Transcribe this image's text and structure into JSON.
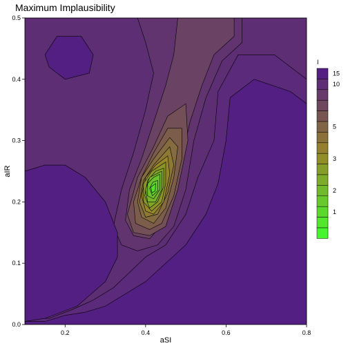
{
  "chart_data": {
    "type": "contour",
    "title": "Maximum Implausibility",
    "xlabel": "aSI",
    "ylabel": "aIR",
    "xlim": [
      0.1,
      0.8
    ],
    "ylim": [
      0.0,
      0.5
    ],
    "x_ticks": [
      "0.2",
      "0.4",
      "0.6",
      "0.8"
    ],
    "y_ticks": [
      "0.0",
      "0.1",
      "0.2",
      "0.3",
      "0.4",
      "0.5"
    ],
    "x_tick_values": [
      0.2,
      0.4,
      0.6,
      0.8
    ],
    "y_tick_values": [
      0.0,
      0.1,
      0.2,
      0.3,
      0.4,
      0.5
    ],
    "legend": {
      "title": "I",
      "placement": "right",
      "labels": [
        "15",
        "10",
        "5",
        "3",
        "2",
        "1"
      ],
      "label_levels": [
        0,
        1,
        5,
        8,
        11,
        13
      ],
      "levels": 16,
      "color_high": "#541f82",
      "color_low": "#47f52e"
    },
    "contours": [
      {
        "level": "outer",
        "points": [
          [
            0.1,
            0.5
          ],
          [
            0.8,
            0.5
          ],
          [
            0.8,
            0.4
          ],
          [
            0.72,
            0.44
          ],
          [
            0.63,
            0.44
          ],
          [
            0.58,
            0.38
          ],
          [
            0.57,
            0.3
          ],
          [
            0.53,
            0.24
          ],
          [
            0.5,
            0.18
          ],
          [
            0.45,
            0.13
          ],
          [
            0.4,
            0.11
          ],
          [
            0.32,
            0.06
          ],
          [
            0.27,
            0.04
          ],
          [
            0.22,
            0.025
          ],
          [
            0.16,
            0.01
          ],
          [
            0.1,
            0.01
          ]
        ]
      },
      {
        "level": 1,
        "points": [
          [
            0.38,
            0.5
          ],
          [
            0.64,
            0.5
          ],
          [
            0.64,
            0.46
          ],
          [
            0.59,
            0.43
          ],
          [
            0.55,
            0.37
          ],
          [
            0.52,
            0.3
          ],
          [
            0.5,
            0.22
          ],
          [
            0.47,
            0.16
          ],
          [
            0.43,
            0.13
          ],
          [
            0.38,
            0.12
          ],
          [
            0.34,
            0.13
          ],
          [
            0.32,
            0.16
          ],
          [
            0.34,
            0.22
          ],
          [
            0.37,
            0.28
          ],
          [
            0.4,
            0.35
          ],
          [
            0.42,
            0.41
          ],
          [
            0.4,
            0.46
          ]
        ]
      },
      {
        "level": 2,
        "points": [
          [
            0.48,
            0.5
          ],
          [
            0.62,
            0.5
          ],
          [
            0.62,
            0.47
          ],
          [
            0.57,
            0.44
          ],
          [
            0.54,
            0.39
          ],
          [
            0.51,
            0.33
          ],
          [
            0.48,
            0.24
          ],
          [
            0.45,
            0.17
          ],
          [
            0.41,
            0.14
          ],
          [
            0.37,
            0.145
          ],
          [
            0.35,
            0.17
          ],
          [
            0.36,
            0.22
          ],
          [
            0.39,
            0.27
          ],
          [
            0.42,
            0.33
          ],
          [
            0.45,
            0.39
          ],
          [
            0.47,
            0.44
          ]
        ]
      },
      {
        "level": 3,
        "points": [
          [
            0.455,
            0.34
          ],
          [
            0.5,
            0.36
          ],
          [
            0.505,
            0.3
          ],
          [
            0.48,
            0.22
          ],
          [
            0.45,
            0.16
          ],
          [
            0.41,
            0.145
          ],
          [
            0.37,
            0.15
          ],
          [
            0.355,
            0.18
          ],
          [
            0.38,
            0.24
          ],
          [
            0.42,
            0.29
          ]
        ]
      },
      {
        "level": 4,
        "points": [
          [
            0.455,
            0.32
          ],
          [
            0.49,
            0.32
          ],
          [
            0.49,
            0.27
          ],
          [
            0.47,
            0.21
          ],
          [
            0.44,
            0.165
          ],
          [
            0.41,
            0.155
          ],
          [
            0.375,
            0.165
          ],
          [
            0.37,
            0.2
          ],
          [
            0.39,
            0.24
          ],
          [
            0.42,
            0.28
          ]
        ]
      },
      {
        "level": 5,
        "points": [
          [
            0.46,
            0.305
          ],
          [
            0.48,
            0.29
          ],
          [
            0.47,
            0.24
          ],
          [
            0.45,
            0.19
          ],
          [
            0.42,
            0.165
          ],
          [
            0.39,
            0.175
          ],
          [
            0.38,
            0.2
          ],
          [
            0.39,
            0.24
          ],
          [
            0.42,
            0.27
          ]
        ]
      },
      {
        "level": 6,
        "points": [
          [
            0.46,
            0.29
          ],
          [
            0.47,
            0.26
          ],
          [
            0.455,
            0.215
          ],
          [
            0.43,
            0.18
          ],
          [
            0.4,
            0.175
          ],
          [
            0.385,
            0.2
          ],
          [
            0.395,
            0.235
          ],
          [
            0.42,
            0.26
          ]
        ]
      },
      {
        "level": 7,
        "points": [
          [
            0.455,
            0.275
          ],
          [
            0.46,
            0.245
          ],
          [
            0.445,
            0.2
          ],
          [
            0.42,
            0.18
          ],
          [
            0.4,
            0.185
          ],
          [
            0.39,
            0.21
          ],
          [
            0.4,
            0.24
          ],
          [
            0.425,
            0.26
          ]
        ]
      },
      {
        "level": 8,
        "points": [
          [
            0.45,
            0.265
          ],
          [
            0.45,
            0.23
          ],
          [
            0.44,
            0.2
          ],
          [
            0.415,
            0.185
          ],
          [
            0.395,
            0.2
          ],
          [
            0.395,
            0.23
          ],
          [
            0.415,
            0.25
          ]
        ]
      },
      {
        "level": 9,
        "points": [
          [
            0.445,
            0.255
          ],
          [
            0.445,
            0.225
          ],
          [
            0.43,
            0.2
          ],
          [
            0.41,
            0.19
          ],
          [
            0.398,
            0.21
          ],
          [
            0.405,
            0.235
          ],
          [
            0.425,
            0.25
          ]
        ]
      },
      {
        "level": 10,
        "points": [
          [
            0.44,
            0.25
          ],
          [
            0.44,
            0.22
          ],
          [
            0.425,
            0.2
          ],
          [
            0.405,
            0.2
          ],
          [
            0.4,
            0.22
          ],
          [
            0.41,
            0.24
          ]
        ]
      },
      {
        "level": 11,
        "points": [
          [
            0.435,
            0.245
          ],
          [
            0.435,
            0.22
          ],
          [
            0.42,
            0.205
          ],
          [
            0.405,
            0.21
          ],
          [
            0.405,
            0.23
          ],
          [
            0.42,
            0.24
          ]
        ]
      },
      {
        "level": 12,
        "points": [
          [
            0.43,
            0.235
          ],
          [
            0.43,
            0.218
          ],
          [
            0.417,
            0.21
          ],
          [
            0.41,
            0.222
          ],
          [
            0.418,
            0.232
          ]
        ]
      },
      {
        "level": 13,
        "points": [
          [
            0.425,
            0.23
          ],
          [
            0.424,
            0.218
          ],
          [
            0.416,
            0.215
          ],
          [
            0.413,
            0.224
          ]
        ]
      }
    ],
    "low_regions": [
      {
        "level": 0,
        "points": [
          [
            0.1,
            0.0
          ],
          [
            0.8,
            0.0
          ],
          [
            0.8,
            0.36
          ],
          [
            0.76,
            0.38
          ],
          [
            0.67,
            0.4
          ],
          [
            0.61,
            0.37
          ],
          [
            0.6,
            0.3
          ],
          [
            0.58,
            0.23
          ],
          [
            0.55,
            0.18
          ],
          [
            0.5,
            0.13
          ],
          [
            0.45,
            0.1
          ],
          [
            0.4,
            0.07
          ],
          [
            0.35,
            0.05
          ],
          [
            0.3,
            0.03
          ],
          [
            0.25,
            0.02
          ],
          [
            0.2,
            0.015
          ],
          [
            0.15,
            0.005
          ],
          [
            0.1,
            0.005
          ]
        ]
      },
      {
        "level": 0,
        "points": [
          [
            0.1,
            0.005
          ],
          [
            0.15,
            0.01
          ],
          [
            0.23,
            0.03
          ],
          [
            0.3,
            0.07
          ],
          [
            0.33,
            0.11
          ],
          [
            0.33,
            0.15
          ],
          [
            0.3,
            0.2
          ],
          [
            0.25,
            0.24
          ],
          [
            0.2,
            0.26
          ],
          [
            0.15,
            0.26
          ],
          [
            0.1,
            0.25
          ]
        ]
      },
      {
        "level": 0,
        "points": [
          [
            0.18,
            0.47
          ],
          [
            0.24,
            0.47
          ],
          [
            0.27,
            0.44
          ],
          [
            0.26,
            0.41
          ],
          [
            0.2,
            0.4
          ],
          [
            0.16,
            0.42
          ],
          [
            0.15,
            0.44
          ]
        ]
      }
    ]
  }
}
